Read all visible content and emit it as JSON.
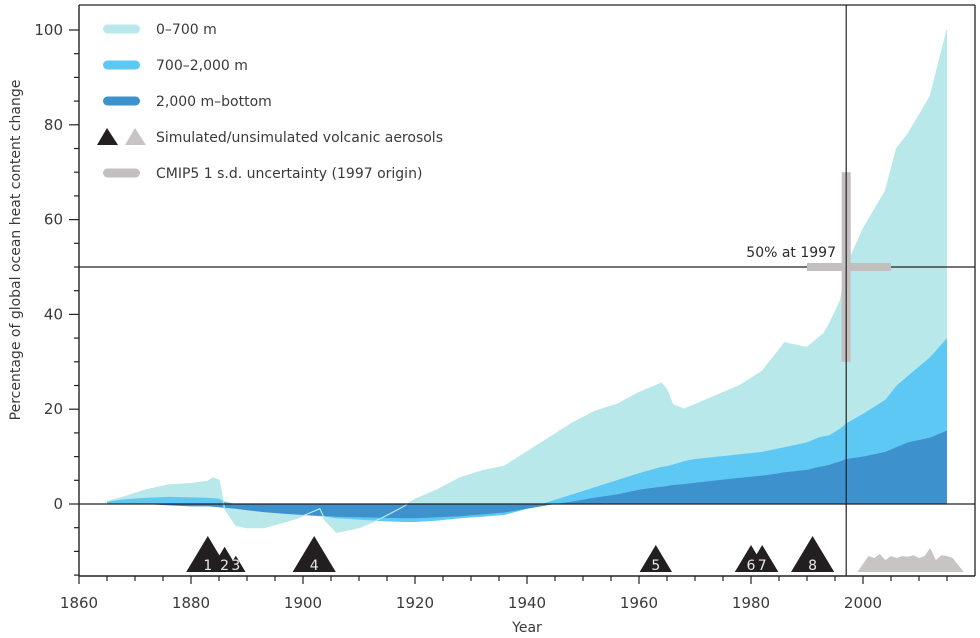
{
  "chart_data": {
    "type": "area",
    "title": "",
    "xlabel": "Year",
    "ylabel": "Percentage of global ocean heat content change",
    "xlim": [
      1860,
      2019
    ],
    "ylim": [
      -15,
      105
    ],
    "x_ticks": [
      1860,
      1880,
      1900,
      1920,
      1940,
      1960,
      1980,
      2000
    ],
    "y_ticks": [
      0,
      20,
      40,
      60,
      80,
      100
    ],
    "grid": false,
    "legend_placement": "top-left",
    "legend": [
      {
        "label": "0–700 m",
        "kind": "bar",
        "color": "#b8e8e9"
      },
      {
        "label": "700–2,000 m",
        "kind": "bar",
        "color": "#5ec8f5"
      },
      {
        "label": "2,000 m–bottom",
        "kind": "bar",
        "color": "#3d91cc"
      },
      {
        "label": "Simulated/unsimulated volcanic aerosols",
        "kind": "triangles",
        "colors": [
          "#231f20",
          "#c8c4c3"
        ]
      },
      {
        "label": "CMIP5 1 s.d. uncertainty (1997 origin)",
        "kind": "bar",
        "color": "#c3bfbe"
      }
    ],
    "x": [
      1865,
      1868,
      1872,
      1876,
      1880,
      1883,
      1884,
      1885,
      1886,
      1888,
      1890,
      1893,
      1896,
      1899,
      1902,
      1903,
      1904,
      1906,
      1910,
      1914,
      1918,
      1920,
      1924,
      1928,
      1932,
      1936,
      1940,
      1944,
      1948,
      1952,
      1956,
      1960,
      1963,
      1964,
      1965,
      1966,
      1968,
      1970,
      1974,
      1978,
      1982,
      1984,
      1986,
      1990,
      1992,
      1993,
      1994,
      1996,
      1997,
      2000,
      2004,
      2006,
      2008,
      2012,
      2015
    ],
    "series": [
      {
        "name": "0–700 m (cumulative total)",
        "values": [
          0.5,
          1.5,
          3,
          4,
          4.3,
          4.8,
          5.5,
          5,
          -1,
          -4.5,
          -5,
          -5,
          -4,
          -3,
          -1.5,
          -1,
          -3.5,
          -6,
          -5,
          -3,
          -0.5,
          1,
          3,
          5.5,
          7,
          8,
          11,
          14,
          17,
          19.5,
          21,
          23.5,
          25,
          25.5,
          24,
          21,
          20,
          21,
          23,
          25,
          28,
          31,
          34,
          33,
          35,
          36,
          38,
          43,
          50,
          58,
          66,
          75,
          78,
          86,
          100
        ]
      },
      {
        "name": "700–2,000 m (cumulative)",
        "values": [
          0.5,
          1,
          1.3,
          1.5,
          1.4,
          1.3,
          1.2,
          1.1,
          0.5,
          0,
          -0.5,
          -1.5,
          -2,
          -2.3,
          -2.5,
          -2.6,
          -2.7,
          -3,
          -3.3,
          -3.6,
          -3.8,
          -3.8,
          -3.5,
          -3,
          -2.7,
          -2.3,
          -1,
          0.5,
          2,
          3.5,
          5,
          6.5,
          7.5,
          7.8,
          8,
          8.3,
          9,
          9.5,
          10,
          10.5,
          11,
          11.5,
          12,
          13,
          14,
          14.3,
          14.5,
          16,
          17,
          19,
          22,
          25,
          27,
          31,
          35
        ]
      },
      {
        "name": "2,000 m–bottom",
        "values": [
          0,
          0,
          0,
          -0.3,
          -0.5,
          -0.5,
          -0.6,
          -0.7,
          -0.8,
          -1,
          -1.3,
          -1.7,
          -2,
          -2.2,
          -2.4,
          -2.5,
          -2.5,
          -2.7,
          -2.8,
          -2.9,
          -3,
          -3,
          -2.8,
          -2.6,
          -2.2,
          -1.8,
          -1,
          -0.2,
          0.5,
          1.3,
          2,
          3,
          3.5,
          3.6,
          3.8,
          4,
          4.2,
          4.5,
          5,
          5.5,
          6,
          6.3,
          6.7,
          7.2,
          7.8,
          8,
          8.3,
          9,
          9.5,
          10,
          11,
          12,
          13,
          14,
          15.5
        ]
      }
    ],
    "reference_lines": {
      "year": 1997,
      "value": 50
    },
    "annotations": [
      {
        "text": "50% at 1997"
      }
    ],
    "uncertainty_cross": {
      "origin_year": 1997,
      "center": 50,
      "y_range": [
        30,
        70
      ],
      "x_range": [
        1990,
        2005
      ]
    },
    "volcanoes_simulated": [
      {
        "label": "1",
        "year": 1883,
        "size": 1.0
      },
      {
        "label": "2",
        "year": 1886,
        "size": 0.7
      },
      {
        "label": "3",
        "year": 1888,
        "size": 0.45
      },
      {
        "label": "4",
        "year": 1902,
        "size": 1.0
      },
      {
        "label": "5",
        "year": 1963,
        "size": 0.75
      },
      {
        "label": "6",
        "year": 1980,
        "size": 0.75
      },
      {
        "label": "7",
        "year": 1982,
        "size": 0.75
      },
      {
        "label": "8",
        "year": 1991,
        "size": 1.0
      }
    ],
    "volcanoes_unsimulated": {
      "x": [
        1999,
        2001,
        2002,
        2003,
        2004,
        2005,
        2006,
        2007,
        2008,
        2009,
        2010,
        2011,
        2012,
        2013,
        2014,
        2015,
        2016,
        2018
      ],
      "y": [
        0,
        0.4,
        0.35,
        0.45,
        0.3,
        0.4,
        0.35,
        0.4,
        0.38,
        0.42,
        0.35,
        0.4,
        0.6,
        0.3,
        0.42,
        0.4,
        0.35,
        0
      ]
    }
  }
}
